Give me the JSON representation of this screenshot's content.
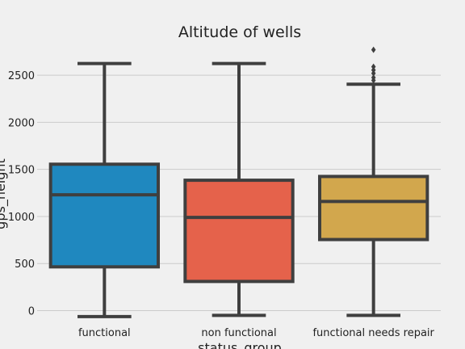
{
  "chart_data": {
    "type": "box",
    "title": "Altitude of wells",
    "xlabel": "status_group",
    "ylabel": "gps_height",
    "yticks": [
      0,
      500,
      1000,
      1500,
      2000,
      2500
    ],
    "ylim": [
      -90,
      2750
    ],
    "grid": "horizontal",
    "categories": [
      "functional",
      "non functional",
      "functional needs repair"
    ],
    "boxes": [
      {
        "category": "functional",
        "color": "#1f88bf",
        "whisker_low": -63,
        "q1": 465,
        "median": 1230,
        "q3": 1555,
        "whisker_high": 2625,
        "outliers": []
      },
      {
        "category": "non functional",
        "color": "#e5624b",
        "whisker_low": -50,
        "q1": 310,
        "median": 990,
        "q3": 1385,
        "whisker_high": 2625,
        "outliers": []
      },
      {
        "category": "functional needs repair",
        "color": "#d2a74d",
        "whisker_low": -50,
        "q1": 755,
        "median": 1160,
        "q3": 1425,
        "whisker_high": 2405,
        "outliers": [
          2445,
          2475,
          2520,
          2555,
          2590,
          2770
        ]
      }
    ]
  }
}
